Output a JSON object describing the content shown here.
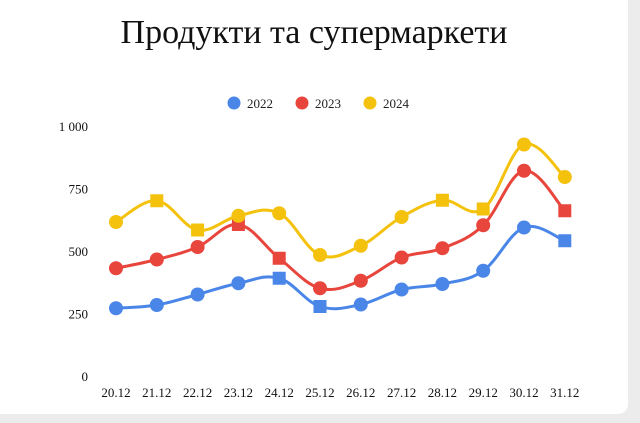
{
  "chart_data": {
    "type": "line",
    "title": "Продукти та супермаркети",
    "categories": [
      "20.12",
      "21.12",
      "22.12",
      "23.12",
      "24.12",
      "25.12",
      "26.12",
      "27.12",
      "28.12",
      "29.12",
      "30.12",
      "31.12"
    ],
    "y_ticks": [
      "0",
      "250",
      "500",
      "750",
      "1 000"
    ],
    "ylim": [
      0,
      1000
    ],
    "grid": false,
    "legend_position": "top-center",
    "series": [
      {
        "name": "2022",
        "color": "#4a86e8",
        "values": [
          275,
          288,
          330,
          375,
          395,
          282,
          290,
          350,
          372,
          425,
          598,
          545
        ]
      },
      {
        "name": "2023",
        "color": "#e8453c",
        "values": [
          435,
          470,
          520,
          610,
          475,
          355,
          385,
          478,
          515,
          607,
          825,
          665
        ]
      },
      {
        "name": "2024",
        "color": "#f4c20d",
        "values": [
          620,
          705,
          588,
          645,
          655,
          488,
          525,
          640,
          707,
          672,
          930,
          800
        ]
      }
    ]
  }
}
